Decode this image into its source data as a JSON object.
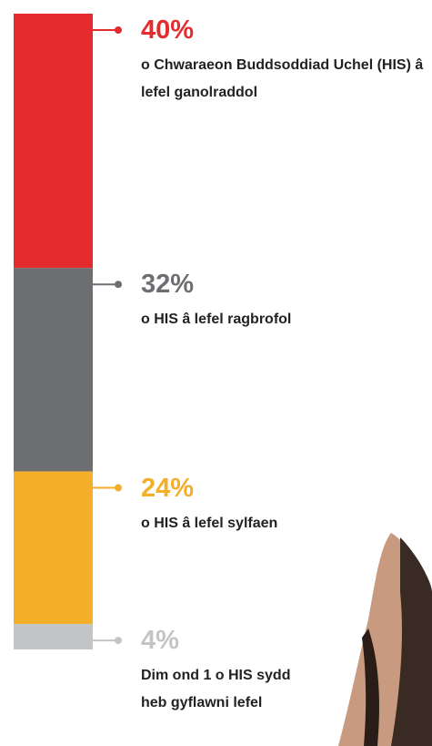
{
  "chart_data": {
    "type": "stacked-bar",
    "ylim": [
      0,
      100
    ],
    "series": [
      {
        "name": "o Chwaraeon Buddsoddiad Uchel (HIS) â lefel ganolraddol",
        "color": "#e42b2d",
        "values": [
          40
        ],
        "value_labels": [
          "40%"
        ]
      },
      {
        "name": "o HIS â lefel ragbrofol",
        "color": "#6d6e71",
        "values": [
          32
        ],
        "value_labels": [
          "32%"
        ]
      },
      {
        "name": "o HIS â lefel sylfaen",
        "color": "#f5ae29",
        "values": [
          24
        ],
        "value_labels": [
          "24%"
        ]
      },
      {
        "name": "Dim ond 1 o HIS sydd heb gyflawni lefel",
        "color": "#c3c4c6",
        "values": [
          4
        ],
        "value_labels": [
          "4%"
        ]
      }
    ]
  }
}
